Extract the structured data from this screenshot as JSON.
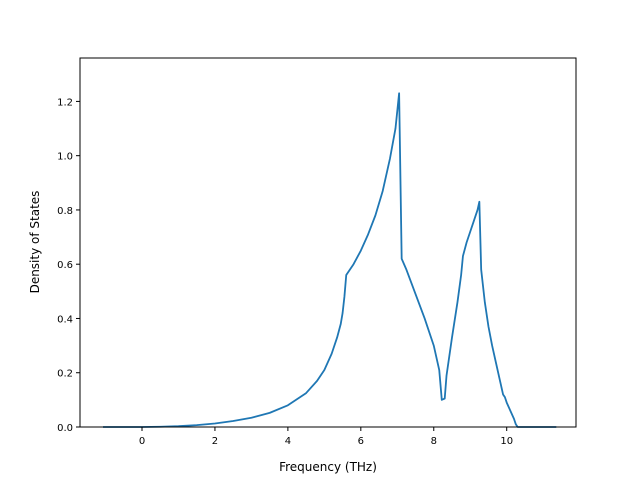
{
  "chart_data": {
    "type": "line",
    "title": "",
    "xlabel": "Frequency (THz)",
    "ylabel": "Density of States",
    "xlim": [
      -1.7,
      11.9
    ],
    "ylim": [
      0.0,
      1.36
    ],
    "grid": false,
    "legend": "none",
    "xticks": [
      0,
      2,
      4,
      6,
      8,
      10
    ],
    "xtick_labels": [
      "0",
      "2",
      "4",
      "6",
      "8",
      "10"
    ],
    "yticks": [
      0.0,
      0.2,
      0.4,
      0.6,
      0.8,
      1.0,
      1.2
    ],
    "ytick_labels": [
      "0.0",
      "0.2",
      "0.4",
      "0.6",
      "0.8",
      "1.0",
      "1.2"
    ],
    "series": [
      {
        "color": "#1f77b4",
        "x": [
          -1.07,
          -0.5,
          0.0,
          0.5,
          1.0,
          1.5,
          2.0,
          2.5,
          3.0,
          3.5,
          4.0,
          4.5,
          4.8,
          5.0,
          5.2,
          5.35,
          5.45,
          5.5,
          5.55,
          5.6,
          5.8,
          6.0,
          6.2,
          6.4,
          6.6,
          6.8,
          6.95,
          7.05,
          7.12,
          7.25,
          7.5,
          7.75,
          8.0,
          8.15,
          8.22,
          8.3,
          8.35,
          8.5,
          8.65,
          8.75,
          8.8,
          8.9,
          9.0,
          9.1,
          9.2,
          9.25,
          9.3,
          9.4,
          9.5,
          9.6,
          9.7,
          9.8,
          9.9,
          9.95,
          10.0,
          10.1,
          10.2,
          10.25,
          10.3,
          10.5,
          10.8,
          11.0,
          11.36
        ],
        "y": [
          0.0,
          0.0,
          0.0,
          0.001,
          0.003,
          0.007,
          0.013,
          0.022,
          0.034,
          0.052,
          0.08,
          0.125,
          0.17,
          0.21,
          0.27,
          0.33,
          0.38,
          0.42,
          0.48,
          0.56,
          0.6,
          0.65,
          0.71,
          0.78,
          0.87,
          0.99,
          1.1,
          1.23,
          0.62,
          0.58,
          0.49,
          0.4,
          0.3,
          0.21,
          0.1,
          0.105,
          0.19,
          0.33,
          0.46,
          0.56,
          0.63,
          0.68,
          0.72,
          0.76,
          0.8,
          0.83,
          0.58,
          0.46,
          0.37,
          0.3,
          0.24,
          0.18,
          0.12,
          0.11,
          0.09,
          0.06,
          0.03,
          0.01,
          0.0,
          0.0,
          0.0,
          0.0,
          0.0
        ]
      }
    ]
  }
}
